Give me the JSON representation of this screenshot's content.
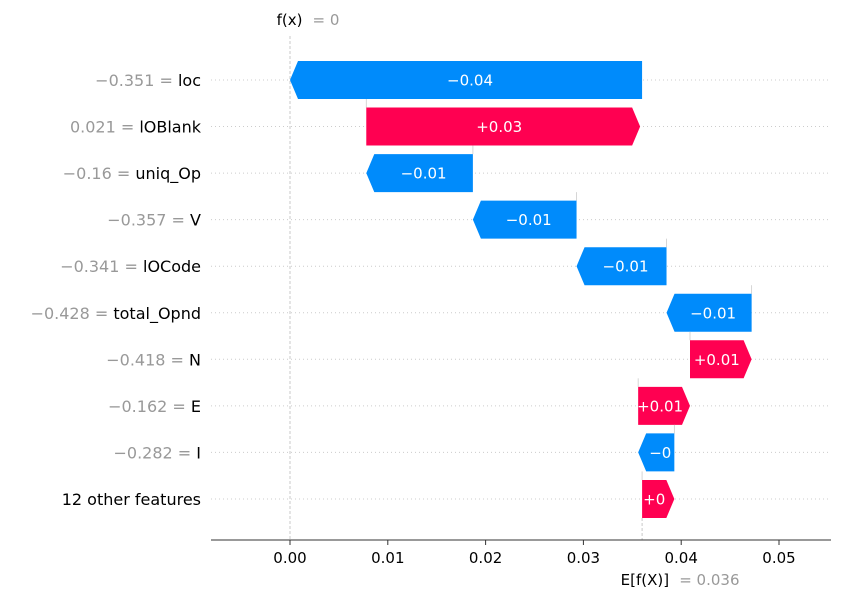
{
  "chart_data": {
    "type": "waterfall",
    "title": "",
    "xlabel": "",
    "ylabel": "",
    "xlim": [
      -0.008,
      0.055
    ],
    "xticks": [
      "0.00",
      "0.01",
      "0.02",
      "0.03",
      "0.04",
      "0.05"
    ],
    "xtick_values": [
      0.0,
      0.01,
      0.02,
      0.03,
      0.04,
      0.05
    ],
    "fx": {
      "text": "f(x)",
      "value_text": "= 0",
      "value": 0.0
    },
    "expected": {
      "text": "E[f(X)]",
      "value_text": "= 0.036",
      "value": 0.036
    },
    "features": [
      {
        "value": "−0.351 =",
        "name": "loc",
        "start": 0.036,
        "end": 0.0,
        "label": "−0.04"
      },
      {
        "value": "0.021 =",
        "name": "lOBlank",
        "start": 0.0078,
        "end": 0.0358,
        "label": "+0.03"
      },
      {
        "value": "−0.16 =",
        "name": "uniq_Op",
        "start": 0.0187,
        "end": 0.0078,
        "label": "−0.01"
      },
      {
        "value": "−0.357 =",
        "name": "V",
        "start": 0.0293,
        "end": 0.0187,
        "label": "−0.01"
      },
      {
        "value": "−0.341 =",
        "name": "lOCode",
        "start": 0.0385,
        "end": 0.0293,
        "label": "−0.01"
      },
      {
        "value": "−0.428 =",
        "name": "total_Opnd",
        "start": 0.0472,
        "end": 0.0385,
        "label": "−0.01"
      },
      {
        "value": "−0.418 =",
        "name": "N",
        "start": 0.0409,
        "end": 0.0472,
        "label": "+0.01"
      },
      {
        "value": "−0.162 =",
        "name": "E",
        "start": 0.0356,
        "end": 0.0409,
        "label": "+0.01"
      },
      {
        "value": "−0.282 =",
        "name": "I",
        "start": 0.0393,
        "end": 0.0356,
        "label": "−0"
      },
      {
        "value": "",
        "name": "12 other features",
        "start": 0.036,
        "end": 0.0393,
        "label": "+0"
      }
    ],
    "colors": {
      "positive": "#ff0051",
      "negative": "#008bfb",
      "grid": "#cccccc"
    }
  }
}
